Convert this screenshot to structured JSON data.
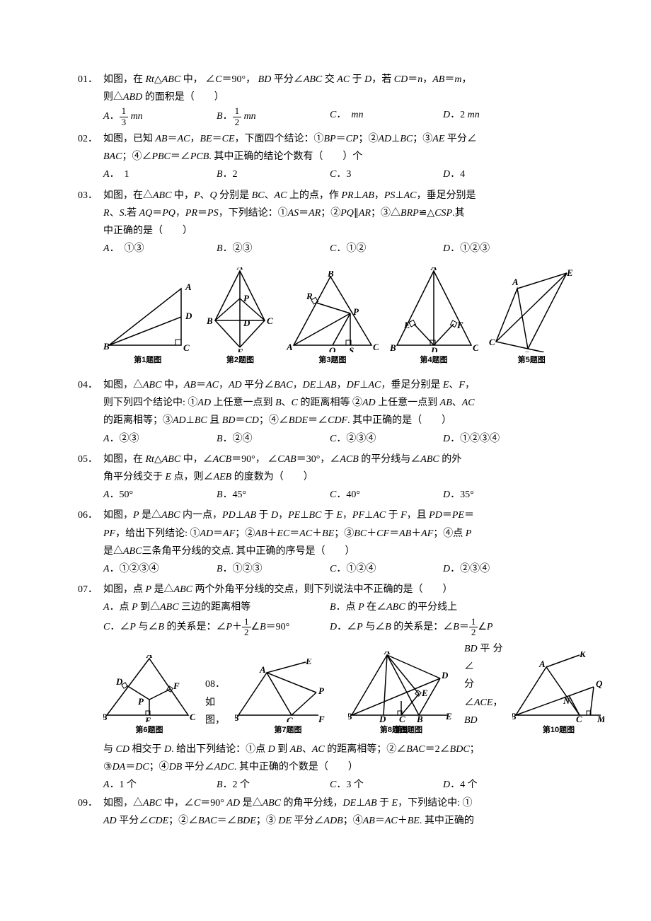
{
  "questions": [
    {
      "num": "01．",
      "lines": [
        "如图，在 <i>Rt</i>△<i>ABC</i> 中， ∠<i>C</i>＝90°， <i>BD</i> 平分∠<i>ABC</i> 交 <i>AC</i> 于 <i>D</i>，若 <i>CD</i>＝<i>n</i>，<i>AB</i>＝<i>m</i>，",
        "则△<i>ABD</i> 的面积是（　　）"
      ],
      "choices": {
        "A": "<i>A</i>．<span class='frac'><span class='num'>1</span><span class='den'>3</span></span> <i>mn</i>",
        "B": "<i>B</i>．<span class='frac'><span class='num'>1</span><span class='den'>2</span></span> <i>mn</i>",
        "C": "<i>C</i>．　<i>mn</i>",
        "D": "<i>D</i>．2 <i>mn</i>"
      }
    },
    {
      "num": "02．",
      "lines": [
        "如图，已知 <i>AB</i>＝<i>AC</i>，<i>BE</i>＝<i>CE</i>，下面四个结论：①<i>BP</i>＝<i>CP</i>；②<i>AD</i>⊥<i>BC</i>；③<i>AE</i> 平分∠",
        "<i>BAC</i>；④∠<i>PBC</i>＝∠<i>PCB</i>. 其中正确的结论个数有（　　）个"
      ],
      "choices": {
        "A": "<i>A</i>．　1",
        "B": "<i>B</i>．2",
        "C": "<i>C</i>．3",
        "D": "<i>D</i>．4"
      }
    },
    {
      "num": "03．",
      "lines": [
        "如图，在△<i>ABC</i> 中，<i>P</i>、<i>Q</i> 分别是 <i>BC</i>、<i>AC</i> 上的点，作 <i>PR</i>⊥<i>AB</i>，<i>PS</i>⊥<i>AC</i>，垂足分别是",
        "<i>R</i>、<i>S</i>.若 <i>AQ</i>＝<i>PQ</i>，<i>PR</i>＝<i>PS</i>，下列结论：①<i>AS</i>＝<i>AR</i>；②<i>PQ</i>∥<i>AR</i>；③△<i>BRP</i>≌△<i>CSP</i>.其",
        "中正确的是（　　）"
      ],
      "choices": {
        "A": "<i>A</i>．　①③",
        "B": "<i>B</i>．②③",
        "C": "<i>C</i>．①②",
        "D": "<i>D</i>．①②③"
      }
    }
  ],
  "fig_labels": {
    "f1": "第1题图",
    "f2": "第2题图",
    "f3": "第3题图",
    "f4": "第4题图",
    "f5": "第5题图",
    "f6": "第6题图",
    "f7": "第7题图",
    "f8": "第8题图",
    "f9": "第9题图",
    "f10": "第10题图"
  },
  "questions2": [
    {
      "num": "04．",
      "lines": [
        "如图，△<i>ABC</i> 中，<i>AB</i>＝<i>AC</i>，<i>AD</i> 平分∠<i>BAC</i>，<i>DE</i>⊥<i>AB</i>，<i>DF</i>⊥<i>AC</i>，垂足分别是 <i>E</i>、<i>F</i>，",
        "则下列四个结论中: ①<i>AD</i> 上任意一点到 <i>B</i>、<i>C</i> 的距离相等 ②<i>AD</i> 上任意一点到 <i>AB</i>、<i>AC</i>",
        "的距离相等；③<i>AD</i>⊥<i>BC</i> 且 <i>BD</i>＝<i>CD</i>；④∠<i>BDE</i>＝∠<i>CDF</i>. 其中正确的是（　　）"
      ],
      "choices": {
        "A": "<i>A</i>．②③",
        "B": "<i>B</i>．②④",
        "C": "<i>C</i>．②③④",
        "D": "<i>D</i>．①②③④"
      }
    },
    {
      "num": "05．",
      "lines": [
        "如图，在 <i>Rt</i>△<i>ABC</i> 中，∠<i>ACB</i>＝90°， ∠<i>CAB</i>＝30°，∠<i>ACB</i> 的平分线与∠<i>ABC</i> 的外",
        "角平分线交于 <i>E</i> 点，则∠<i>AEB</i> 的度数为（　　）"
      ],
      "choices": {
        "A": "<i>A</i>．50°",
        "B": "<i>B</i>．45°",
        "C": "<i>C</i>．40°",
        "D": "<i>D</i>．35°"
      }
    },
    {
      "num": "06．",
      "lines": [
        "如图，<i>P</i> 是△<i>ABC</i> 内一点，<i>PD</i>⊥<i>AB</i> 于 <i>D</i>，<i>PE</i>⊥<i>BC</i> 于 <i>E</i>，<i>PF</i>⊥<i>AC</i> 于 <i>F</i>，且 <i>PD</i>＝<i>PE</i>＝",
        "<i>PF</i>，给出下列结论: ①<i>AD</i>＝<i>AF</i>；②<i>AB</i>＋<i>EC</i>＝<i>AC</i>＋<i>BE</i>；③<i>BC</i>＋<i>CF</i>＝<i>AB</i>＋<i>AF</i>；④点 <i>P</i>",
        "是△<i>ABC</i>三条角平分线的交点. 其中正确的序号是（　　）"
      ],
      "choices": {
        "A": "<i>A</i>．①②③④",
        "B": "<i>B</i>．①②③",
        "C": "<i>C</i>．①②④",
        "D": "<i>D</i>．②③④"
      }
    },
    {
      "num": "07．",
      "lines": [
        "如图，点 <i>P</i> 是△<i>ABC</i> 两个外角平分线的交点，则下列说法中不正确的是（　　）"
      ],
      "twocol": [
        {
          "left": "<i>A</i>．点 <i>P</i> 到△<i>ABC</i> 三边的距离相等",
          "right": "<i>B</i>．点 <i>P</i> 在∠<i>ABC</i> 的平分线上"
        },
        {
          "left": "<i>C</i>．∠<i>P</i> 与∠<i>B</i> 的关系是：∠<i>P</i>＋<span class='frac'><span class='num'>1</span><span class='den'>2</span></span>∠<i>B</i>＝90°",
          "right": "<i>D</i>．∠<i>P</i> 与∠<i>B</i> 的关系是：∠<i>B</i>＝<span class='frac'><span class='num'>1</span><span class='den'>2</span></span>∠<i>P</i>"
        }
      ]
    }
  ],
  "q8": {
    "pre": "08．如图，",
    "mid1": "<i>BD</i> 平 分 ∠",
    "mid2": "<i>ABC</i>，<i>CD</i> 平",
    "mid3": "分∠<i>ACE</i>，<i>BD</i>",
    "after": [
      "与 <i>CD</i> 相交于 <i>D</i>. 给出下列结论：①点 <i>D</i> 到 <i>AB</i>、<i>AC</i> 的距离相等；②∠<i>BAC</i>＝2∠<i>BDC</i>；",
      "③<i>DA</i>＝<i>DC</i>；④<i>DB</i> 平分∠<i>ADC</i>. 其中正确的个数是（　　）"
    ],
    "choices": {
      "A": "<i>A</i>．1 个",
      "B": "<i>B</i>．2 个",
      "C": "<i>C</i>．3 个",
      "D": "<i>D</i>．4 个"
    }
  },
  "q9": {
    "num": "09．",
    "lines": [
      "如图，△<i>ABC</i> 中，∠<i>C</i>＝90° <i>AD</i> 是△<i>ABC</i> 的角平分线，<i>DE</i>⊥<i>AB</i> 于 <i>E</i>，下列结论中: ①",
      "<i>AD</i> 平分∠<i>CDE</i>；②∠<i>BAC</i>＝∠<i>BDE</i>；③ <i>DE</i> 平分∠<i>ADB</i>；④<i>AB</i>＝<i>AC</i>＋<i>BE</i>. 其中正确的"
    ]
  },
  "svg": {
    "stroke": "#000",
    "stroke_width": 1.5,
    "fill": "none"
  }
}
